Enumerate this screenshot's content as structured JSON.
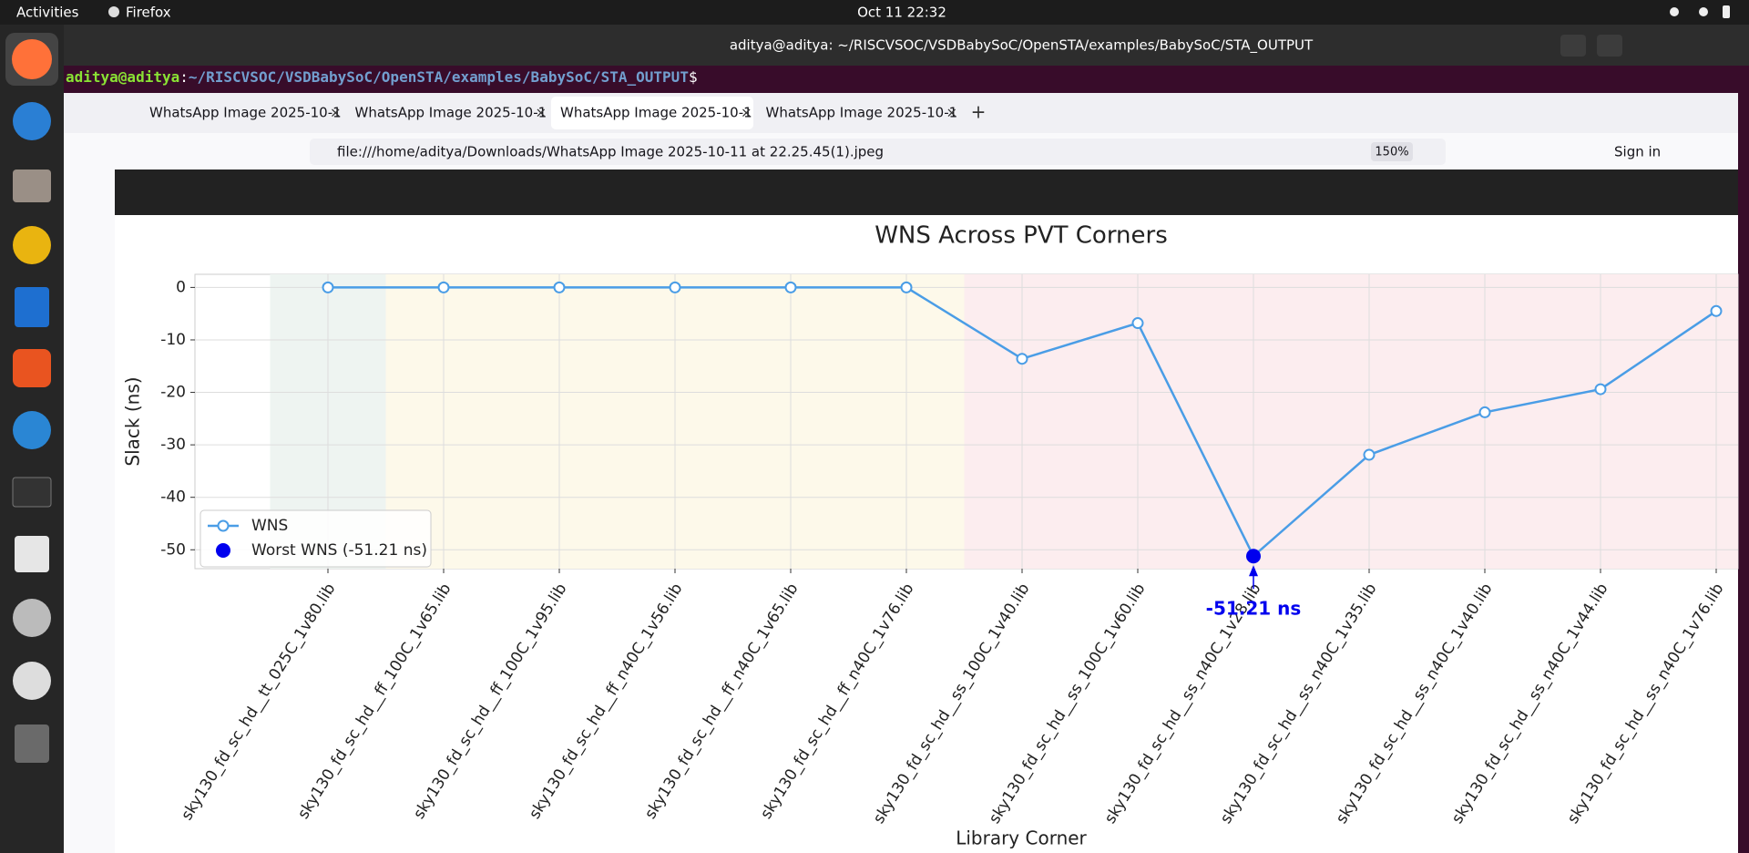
{
  "topbar": {
    "activities": "Activities",
    "app": "Firefox",
    "clock": "Oct 11  22:32"
  },
  "terminal": {
    "title": "aditya@aditya: ~/RISCVSOC/VSDBabySoC/OpenSTA/examples/BabySoC/STA_OUTPUT",
    "prompt_user": "aditya@aditya",
    "prompt_sep": ":",
    "prompt_path": "~/RISCVSOC/VSDBabySoC/OpenSTA/examples/BabySoC/STA_OUTPUT",
    "prompt_symbol": "$"
  },
  "browser": {
    "tabs": [
      "WhatsApp Image 2025-10-1",
      "WhatsApp Image 2025-10-1",
      "WhatsApp Image 2025-10-1",
      "WhatsApp Image 2025-10-1"
    ],
    "url": "file:///home/aditya/Downloads/WhatsApp Image 2025-10-11 at 22.25.45(1).jpeg",
    "zoom": "150%",
    "sign_in": "Sign in"
  },
  "chart_data": {
    "type": "line",
    "title": "WNS Across PVT Corners",
    "xlabel": "Library Corner",
    "ylabel": "Slack (ns)",
    "categories": [
      "sky130_fd_sc_hd__tt_025C_1v80.lib",
      "sky130_fd_sc_hd__ff_100C_1v65.lib",
      "sky130_fd_sc_hd__ff_100C_1v95.lib",
      "sky130_fd_sc_hd__ff_n40C_1v56.lib",
      "sky130_fd_sc_hd__ff_n40C_1v65.lib",
      "sky130_fd_sc_hd__ff_n40C_1v76.lib",
      "sky130_fd_sc_hd__ss_100C_1v40.lib",
      "sky130_fd_sc_hd__ss_100C_1v60.lib",
      "sky130_fd_sc_hd__ss_n40C_1v28.lib",
      "sky130_fd_sc_hd__ss_n40C_1v35.lib",
      "sky130_fd_sc_hd__ss_n40C_1v40.lib",
      "sky130_fd_sc_hd__ss_n40C_1v44.lib",
      "sky130_fd_sc_hd__ss_n40C_1v76.lib"
    ],
    "series": [
      {
        "name": "WNS",
        "color": "#4a9de6",
        "values": [
          0,
          0,
          0,
          0,
          0,
          0,
          -13.6,
          -6.8,
          -51.21,
          -31.9,
          -23.8,
          -19.4,
          -4.5
        ]
      },
      {
        "name": "Worst WNS (-51.21 ns)",
        "color": "#0000ee",
        "values": [
          null,
          null,
          null,
          null,
          null,
          null,
          null,
          null,
          -51.21,
          null,
          null,
          null,
          null
        ],
        "value_labels": [
          null,
          null,
          null,
          null,
          null,
          null,
          null,
          null,
          "-51.21 ns",
          null,
          null,
          null,
          null
        ]
      }
    ],
    "ylim": [
      -53.6,
      2.5
    ],
    "yticks": [
      0,
      -10,
      -20,
      -30,
      -40,
      -50
    ],
    "grid": true,
    "legend": "lower left"
  }
}
